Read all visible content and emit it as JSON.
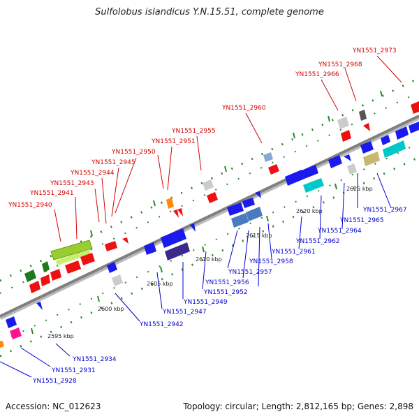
{
  "title": "Sulfolobus islandicus Y.N.15.51, complete genome",
  "footer": {
    "accession": "Accession: NC_012623",
    "summary": "Topology: circular; Length: 2,812,165 bp; Genes: 2,898"
  },
  "colors": {
    "red_label": "#d40000",
    "blue_label": "#0000cc",
    "backbone": "#888888"
  },
  "scale_labels": [
    {
      "text": "2595 kbp"
    },
    {
      "text": "2600 kbp"
    },
    {
      "text": "2605 kbp"
    },
    {
      "text": "2610 kbp"
    },
    {
      "text": "2615 kbp"
    },
    {
      "text": "2620 kbp"
    },
    {
      "text": "2625 kbp"
    }
  ],
  "top_labels": [
    {
      "text": "YN1551_2940"
    },
    {
      "text": "YN1551_2941"
    },
    {
      "text": "YN1551_2943"
    },
    {
      "text": "YN1551_2944"
    },
    {
      "text": "YN1551_2945"
    },
    {
      "text": "YN1551_2950"
    },
    {
      "text": "YN1551_2951"
    },
    {
      "text": "YN1551_2955"
    },
    {
      "text": "YN1551_2960"
    },
    {
      "text": "YN1551_2966"
    },
    {
      "text": "YN1551_2968"
    },
    {
      "text": "YN1551_2973"
    }
  ],
  "bottom_labels": [
    {
      "text": "YN1551_2928"
    },
    {
      "text": "YN1551_2931"
    },
    {
      "text": "YN1551_2934"
    },
    {
      "text": "YN1551_2942"
    },
    {
      "text": "YN1551_2947"
    },
    {
      "text": "YN1551_2949"
    },
    {
      "text": "YN1551_2952"
    },
    {
      "text": "YN1551_2956"
    },
    {
      "text": "YN1551_2957"
    },
    {
      "text": "YN1551_2958"
    },
    {
      "text": "YN1551_2961"
    },
    {
      "text": "YN1551_2962"
    },
    {
      "text": "YN1551_2964"
    },
    {
      "text": "YN1551_2965"
    },
    {
      "text": "YN1551_2967"
    }
  ]
}
